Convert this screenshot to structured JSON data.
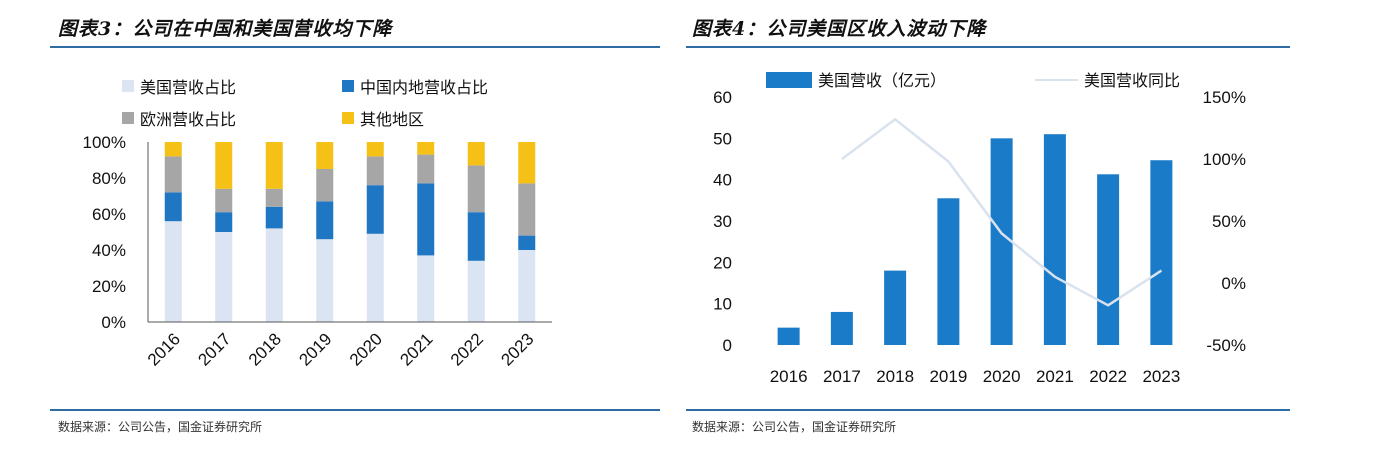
{
  "chart_data": [
    {
      "type": "bar",
      "stacked": true,
      "title": "图表3：公司在中国和美国营收均下降",
      "source": "数据来源：公司公告，国金证券研究所",
      "categories": [
        "2016",
        "2017",
        "2018",
        "2019",
        "2020",
        "2021",
        "2022",
        "2023"
      ],
      "series": [
        {
          "name": "美国营收占比",
          "color": "#dbe4f2",
          "values": [
            56,
            50,
            52,
            46,
            49,
            37,
            34,
            40
          ]
        },
        {
          "name": "中国内地营收占比",
          "color": "#1f77c4",
          "values": [
            16,
            11,
            12,
            21,
            27,
            40,
            27,
            8
          ]
        },
        {
          "name": "欧洲营收占比",
          "color": "#a6a6a6",
          "values": [
            20,
            13,
            10,
            18,
            16,
            16,
            26,
            29
          ]
        },
        {
          "name": "其他地区",
          "color": "#f5c116",
          "values": [
            8,
            26,
            26,
            15,
            8,
            7,
            13,
            23
          ]
        }
      ],
      "yticks": [
        "0%",
        "20%",
        "40%",
        "60%",
        "80%",
        "100%"
      ],
      "ylim": [
        0,
        100
      ],
      "legend": "top"
    },
    {
      "type": "bar",
      "title": "图表4：公司美国区收入波动下降",
      "source": "数据来源：公司公告，国金证券研究所",
      "categories": [
        "2016",
        "2017",
        "2018",
        "2019",
        "2020",
        "2021",
        "2022",
        "2023"
      ],
      "series": [
        {
          "name": "美国营收（亿元）",
          "type": "bar",
          "axis": "left",
          "color": "#1a7bc8",
          "values": [
            4.2,
            8,
            18,
            35.5,
            50,
            51,
            41.3,
            44.7
          ]
        },
        {
          "name": "美国营收同比",
          "type": "line",
          "axis": "right",
          "color": "#d9e2ef",
          "values": [
            null,
            100,
            132,
            98,
            40,
            5,
            -18,
            10
          ]
        }
      ],
      "ylim": [
        0,
        60
      ],
      "y2lim": [
        -50,
        150
      ],
      "yticks": [
        "0",
        "10",
        "20",
        "30",
        "40",
        "50",
        "60"
      ],
      "y2ticks": [
        "-50%",
        "0%",
        "50%",
        "100%",
        "150%"
      ],
      "legend": "top"
    }
  ]
}
